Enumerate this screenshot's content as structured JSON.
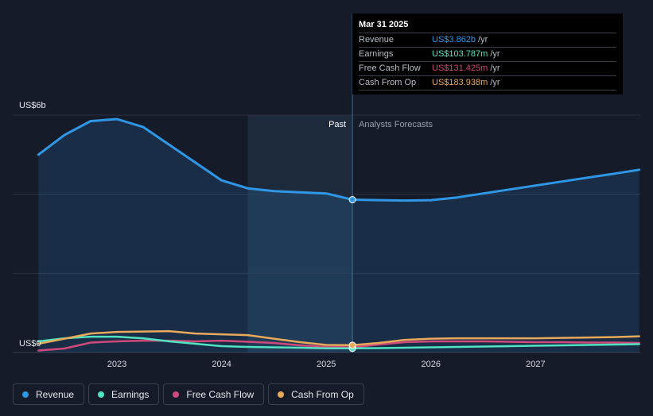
{
  "chart_data": {
    "type": "line",
    "y_axis": {
      "min": 0,
      "max": 6,
      "unit": "US$b",
      "top_label": "US$6b",
      "bottom_label": "US$0"
    },
    "x_ticks": [
      {
        "label": "2023",
        "x": 2023.0
      },
      {
        "label": "2024",
        "x": 2024.0
      },
      {
        "label": "2025",
        "x": 2025.0
      },
      {
        "label": "2026",
        "x": 2026.0
      },
      {
        "label": "2027",
        "x": 2027.0
      }
    ],
    "x_range": [
      2022.25,
      2027.99
    ],
    "past_label": "Past",
    "forecast_label": "Analysts Forecasts",
    "past_start": 2024.25,
    "divider_x": 2025.25,
    "series": [
      {
        "name": "Revenue",
        "key": "revenue",
        "color": "#2f97e6",
        "x": [
          2022.25,
          2022.5,
          2022.75,
          2023.0,
          2023.25,
          2023.5,
          2023.75,
          2024.0,
          2024.25,
          2024.5,
          2024.75,
          2025.0,
          2025.25,
          2025.5,
          2025.75,
          2026.0,
          2026.25,
          2026.5,
          2026.75,
          2027.0,
          2027.25,
          2027.5,
          2027.75,
          2027.99
        ],
        "y": [
          5.0,
          5.5,
          5.85,
          5.9,
          5.7,
          5.25,
          4.8,
          4.35,
          4.15,
          4.08,
          4.05,
          4.02,
          3.862,
          3.85,
          3.84,
          3.85,
          3.92,
          4.02,
          4.12,
          4.22,
          4.32,
          4.42,
          4.52,
          4.62
        ]
      },
      {
        "name": "Earnings",
        "key": "earnings",
        "color": "#4fe3c1",
        "x": [
          2022.25,
          2022.5,
          2022.75,
          2023.0,
          2023.25,
          2023.5,
          2023.75,
          2024.0,
          2024.25,
          2024.5,
          2024.75,
          2025.0,
          2025.25,
          2025.5,
          2025.75,
          2026.0,
          2026.25,
          2026.5,
          2026.75,
          2027.0,
          2027.25,
          2027.5,
          2027.75,
          2027.99
        ],
        "y": [
          0.28,
          0.36,
          0.4,
          0.4,
          0.36,
          0.28,
          0.22,
          0.16,
          0.14,
          0.13,
          0.12,
          0.105,
          0.104,
          0.11,
          0.12,
          0.13,
          0.14,
          0.15,
          0.16,
          0.17,
          0.18,
          0.19,
          0.2,
          0.21
        ]
      },
      {
        "name": "Free Cash Flow",
        "key": "fcf",
        "color": "#d0497b",
        "x": [
          2022.25,
          2022.5,
          2022.75,
          2023.0,
          2023.25,
          2023.5,
          2023.75,
          2024.0,
          2024.25,
          2024.5,
          2024.75,
          2025.0,
          2025.25,
          2025.5,
          2025.75,
          2026.0,
          2026.25,
          2026.5,
          2026.75,
          2027.0,
          2027.25,
          2027.5,
          2027.75,
          2027.99
        ],
        "y": [
          0.05,
          0.1,
          0.25,
          0.28,
          0.3,
          0.3,
          0.28,
          0.3,
          0.27,
          0.24,
          0.18,
          0.14,
          0.131,
          0.2,
          0.26,
          0.28,
          0.28,
          0.28,
          0.27,
          0.26,
          0.26,
          0.25,
          0.25,
          0.24
        ]
      },
      {
        "name": "Cash From Op",
        "key": "cfo",
        "color": "#e8a95a",
        "x": [
          2022.25,
          2022.5,
          2022.75,
          2023.0,
          2023.25,
          2023.5,
          2023.75,
          2024.0,
          2024.25,
          2024.5,
          2024.75,
          2025.0,
          2025.25,
          2025.5,
          2025.75,
          2026.0,
          2026.25,
          2026.5,
          2026.75,
          2027.0,
          2027.25,
          2027.5,
          2027.75,
          2027.99
        ],
        "y": [
          0.22,
          0.35,
          0.48,
          0.52,
          0.53,
          0.54,
          0.48,
          0.46,
          0.44,
          0.35,
          0.26,
          0.19,
          0.184,
          0.24,
          0.32,
          0.35,
          0.36,
          0.36,
          0.36,
          0.36,
          0.37,
          0.38,
          0.39,
          0.41
        ]
      }
    ],
    "highlight_x": 2025.25,
    "grid": true,
    "legend_position": "bottom-left"
  },
  "tooltip": {
    "date": "Mar 31 2025",
    "rows": [
      {
        "name": "Revenue",
        "value": "US$3.862b",
        "unit": "/yr",
        "color": "#2f97e6"
      },
      {
        "name": "Earnings",
        "value": "US$103.787m",
        "unit": "/yr",
        "color": "#4fe3c1"
      },
      {
        "name": "Free Cash Flow",
        "value": "US$131.425m",
        "unit": "/yr",
        "color": "#d0497b"
      },
      {
        "name": "Cash From Op",
        "value": "US$183.938m",
        "unit": "/yr",
        "color": "#e8a95a"
      }
    ]
  },
  "legend": [
    {
      "label": "Revenue",
      "color": "#2f97e6"
    },
    {
      "label": "Earnings",
      "color": "#4fe3c1"
    },
    {
      "label": "Free Cash Flow",
      "color": "#d0497b"
    },
    {
      "label": "Cash From Op",
      "color": "#e8a95a"
    }
  ]
}
